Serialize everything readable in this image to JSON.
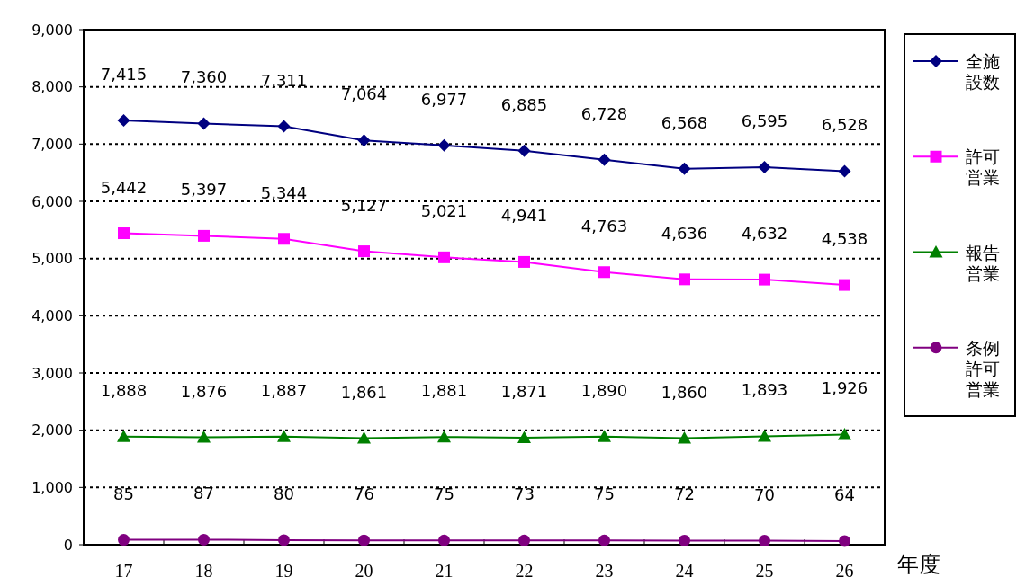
{
  "chart_data": {
    "type": "line",
    "xlabel": "年度",
    "categories": [
      "17",
      "18",
      "19",
      "20",
      "21",
      "22",
      "23",
      "24",
      "25",
      "26"
    ],
    "series": [
      {
        "name": "全施設数",
        "color": "#000080",
        "marker": "diamond",
        "values": [
          7415,
          7360,
          7311,
          7064,
          6977,
          6885,
          6728,
          6568,
          6595,
          6528
        ],
        "value_labels": [
          "7,415",
          "7,360",
          "7,311",
          "7,064",
          "6,977",
          "6,885",
          "6,728",
          "6,568",
          "6,595",
          "6,528"
        ]
      },
      {
        "name": "許可営業",
        "color": "#ff00ff",
        "marker": "square",
        "values": [
          5442,
          5397,
          5344,
          5127,
          5021,
          4941,
          4763,
          4636,
          4632,
          4538
        ],
        "value_labels": [
          "5,442",
          "5,397",
          "5,344",
          "5,127",
          "5,021",
          "4,941",
          "4,763",
          "4,636",
          "4,632",
          "4,538"
        ]
      },
      {
        "name": "報告営業",
        "color": "#008000",
        "marker": "triangle",
        "values": [
          1888,
          1876,
          1887,
          1861,
          1881,
          1871,
          1890,
          1860,
          1893,
          1926
        ],
        "value_labels": [
          "1,888",
          "1,876",
          "1,887",
          "1,861",
          "1,881",
          "1,871",
          "1,890",
          "1,860",
          "1,893",
          "1,926"
        ]
      },
      {
        "name": "条例許可営業",
        "color": "#800080",
        "marker": "circle",
        "values": [
          85,
          87,
          80,
          76,
          75,
          73,
          75,
          72,
          70,
          64
        ],
        "value_labels": [
          "85",
          "87",
          "80",
          "76",
          "75",
          "73",
          "75",
          "72",
          "70",
          "64"
        ]
      }
    ],
    "ylim": [
      0,
      9000
    ],
    "yticks": [
      {
        "value": 0,
        "label": "0"
      },
      {
        "value": 1000,
        "label": "1,000"
      },
      {
        "value": 2000,
        "label": "2,000"
      },
      {
        "value": 3000,
        "label": "3,000"
      },
      {
        "value": 4000,
        "label": "4,000"
      },
      {
        "value": 5000,
        "label": "5,000"
      },
      {
        "value": 6000,
        "label": "6,000"
      },
      {
        "value": 7000,
        "label": "7,000"
      },
      {
        "value": 8000,
        "label": "8,000"
      },
      {
        "value": 9000,
        "label": "9,000"
      }
    ],
    "grid": "y",
    "legend": "right",
    "line_style": "solid"
  }
}
